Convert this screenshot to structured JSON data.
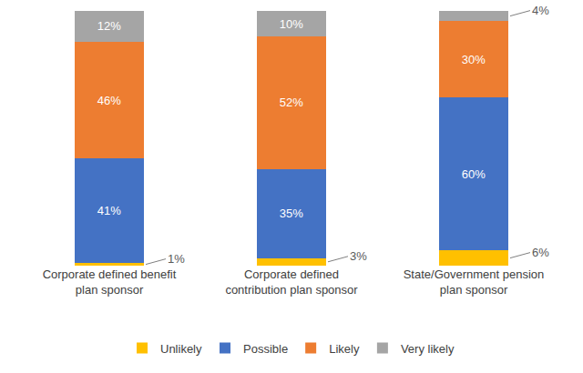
{
  "chart_data": {
    "type": "bar",
    "stacked": true,
    "categories": [
      "Corporate defined benefit plan sponsor",
      "Corporate defined contribution plan sponsor",
      "State/Government pension plan sponsor"
    ],
    "series": [
      {
        "name": "Unlikely",
        "color": "#FFC000",
        "values": [
          1,
          3,
          6
        ],
        "value_labels": [
          "1%",
          "3%",
          "6%"
        ]
      },
      {
        "name": "Possible",
        "color": "#4472C4",
        "values": [
          41,
          35,
          60
        ],
        "value_labels": [
          "41%",
          "35%",
          "60%"
        ]
      },
      {
        "name": "Likely",
        "color": "#ED7D31",
        "values": [
          46,
          52,
          30
        ],
        "value_labels": [
          "46%",
          "52%",
          "30%"
        ]
      },
      {
        "name": "Very likely",
        "color": "#A5A5A5",
        "values": [
          12,
          10,
          4
        ],
        "value_labels": [
          "12%",
          "10%",
          "4%"
        ]
      }
    ],
    "ylim": [
      0,
      100
    ],
    "data_labels": true,
    "tick_labels": "x",
    "legend": "bottom",
    "grid": false
  }
}
